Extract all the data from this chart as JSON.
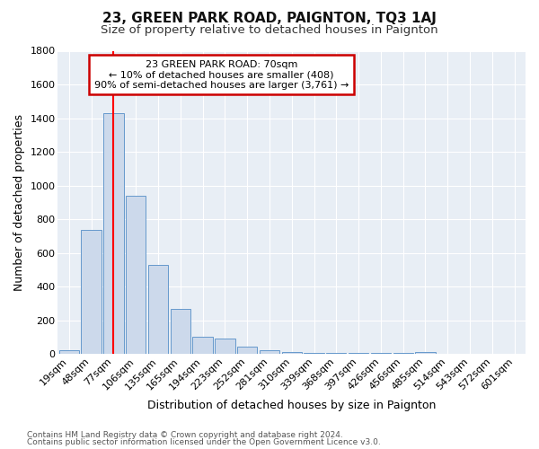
{
  "title": "23, GREEN PARK ROAD, PAIGNTON, TQ3 1AJ",
  "subtitle": "Size of property relative to detached houses in Paignton",
  "xlabel": "Distribution of detached houses by size in Paignton",
  "ylabel": "Number of detached properties",
  "footnote1": "Contains HM Land Registry data © Crown copyright and database right 2024.",
  "footnote2": "Contains public sector information licensed under the Open Government Licence v3.0.",
  "bar_labels": [
    "19sqm",
    "48sqm",
    "77sqm",
    "106sqm",
    "135sqm",
    "165sqm",
    "194sqm",
    "223sqm",
    "252sqm",
    "281sqm",
    "310sqm",
    "339sqm",
    "368sqm",
    "397sqm",
    "426sqm",
    "456sqm",
    "485sqm",
    "514sqm",
    "543sqm",
    "572sqm",
    "601sqm"
  ],
  "bar_values": [
    22,
    740,
    1430,
    940,
    530,
    270,
    105,
    95,
    45,
    25,
    15,
    10,
    10,
    8,
    8,
    8,
    15,
    1,
    1,
    1,
    1
  ],
  "bar_color": "#ccd9eb",
  "bar_edge_color": "#6699cc",
  "background_color": "#e8eef5",
  "fig_background": "#ffffff",
  "grid_color": "#ffffff",
  "red_line_x": 2.0,
  "annotation_line1": "23 GREEN PARK ROAD: 70sqm",
  "annotation_line2": "← 10% of detached houses are smaller (408)",
  "annotation_line3": "90% of semi-detached houses are larger (3,761) →",
  "annotation_box_color": "#ffffff",
  "annotation_box_edge": "#cc0000",
  "ylim": [
    0,
    1800
  ],
  "yticks": [
    0,
    200,
    400,
    600,
    800,
    1000,
    1200,
    1400,
    1600,
    1800
  ],
  "title_fontsize": 11,
  "subtitle_fontsize": 9.5,
  "ylabel_fontsize": 9,
  "xlabel_fontsize": 9,
  "tick_fontsize": 8,
  "footnote_fontsize": 6.5
}
